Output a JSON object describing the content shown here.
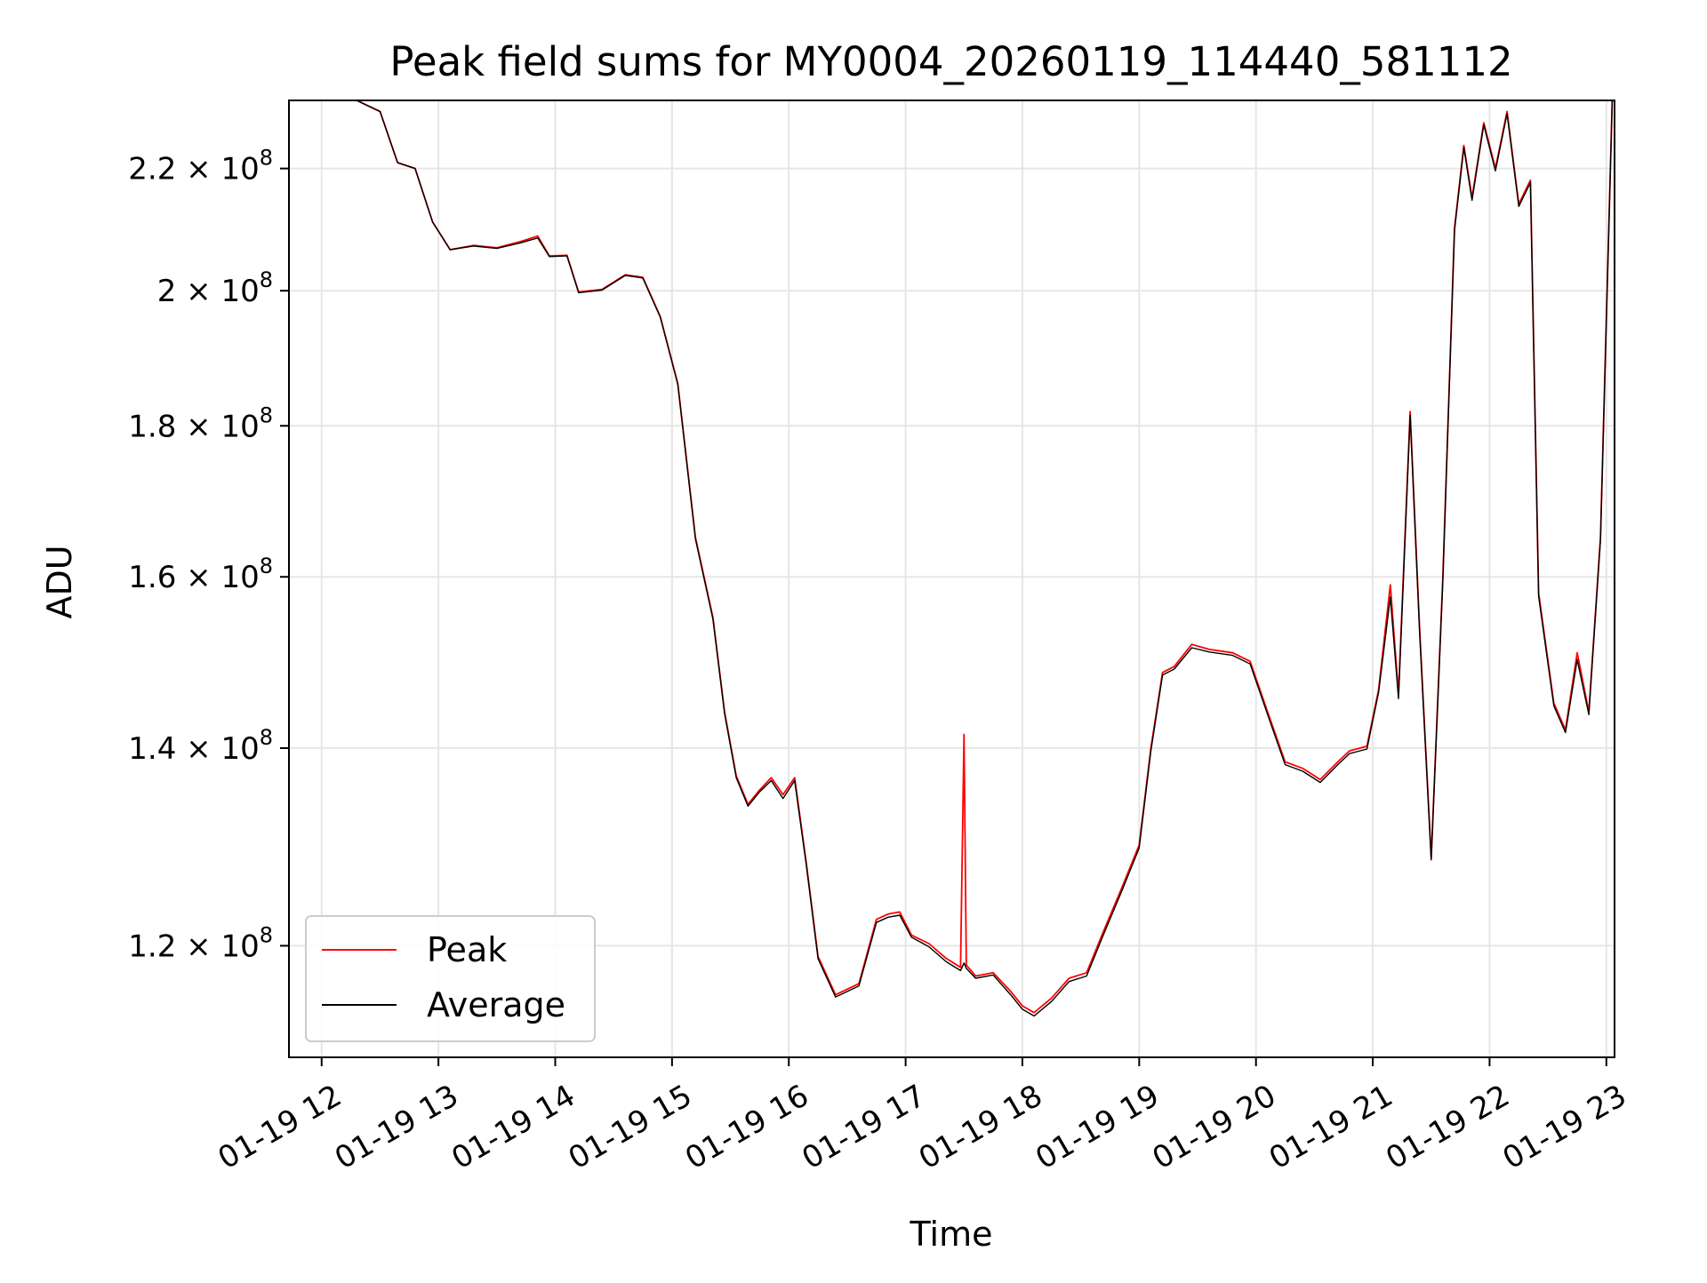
{
  "chart_data": {
    "type": "line",
    "title": "Peak field sums for MY0004_20260119_114440_581112",
    "xlabel": "Time",
    "ylabel": "ADU",
    "yscale": "log",
    "grid": true,
    "legend_position": "lower-left",
    "xlim_hours": [
      11.72,
      23.07
    ],
    "ylim": [
      110000000,
      232000000
    ],
    "x_ticks": [
      "01-19 12",
      "01-19 13",
      "01-19 14",
      "01-19 15",
      "01-19 16",
      "01-19 17",
      "01-19 18",
      "01-19 19",
      "01-19 20",
      "01-19 21",
      "01-19 22",
      "01-19 23"
    ],
    "y_ticks": [
      {
        "value": 120000000,
        "mantissa": "1.2",
        "base": "10",
        "exp": "8"
      },
      {
        "value": 140000000,
        "mantissa": "1.4",
        "base": "10",
        "exp": "8"
      },
      {
        "value": 160000000,
        "mantissa": "1.6",
        "base": "10",
        "exp": "8"
      },
      {
        "value": 180000000,
        "mantissa": "1.8",
        "base": "10",
        "exp": "8"
      },
      {
        "value": 200000000,
        "mantissa": "2",
        "base": "10",
        "exp": "8"
      },
      {
        "value": 220000000,
        "mantissa": "2.2",
        "base": "10",
        "exp": "8"
      }
    ],
    "series": [
      {
        "name": "Peak",
        "color": "#ff0000",
        "points": [
          [
            11.72,
            232000000
          ],
          [
            12.3,
            232000000
          ],
          [
            12.5,
            230000000
          ],
          [
            12.65,
            221000000
          ],
          [
            12.8,
            220000000
          ],
          [
            12.95,
            211000000
          ],
          [
            13.1,
            206500000
          ],
          [
            13.3,
            207200000
          ],
          [
            13.5,
            206800000
          ],
          [
            13.7,
            207800000
          ],
          [
            13.85,
            208700000
          ],
          [
            13.95,
            205500000
          ],
          [
            14.1,
            205600000
          ],
          [
            14.2,
            199800000
          ],
          [
            14.4,
            200200000
          ],
          [
            14.6,
            202500000
          ],
          [
            14.75,
            202100000
          ],
          [
            14.9,
            196000000
          ],
          [
            15.05,
            186000000
          ],
          [
            15.2,
            165000000
          ],
          [
            15.35,
            155000000
          ],
          [
            15.45,
            144000000
          ],
          [
            15.55,
            137000000
          ],
          [
            15.65,
            134000000
          ],
          [
            15.75,
            135500000
          ],
          [
            15.85,
            136800000
          ],
          [
            15.95,
            135000000
          ],
          [
            16.05,
            136800000
          ],
          [
            16.15,
            128000000
          ],
          [
            16.25,
            119000000
          ],
          [
            16.4,
            115500000
          ],
          [
            16.6,
            116500000
          ],
          [
            16.75,
            122500000
          ],
          [
            16.85,
            123000000
          ],
          [
            16.95,
            123200000
          ],
          [
            17.05,
            121000000
          ],
          [
            17.2,
            120200000
          ],
          [
            17.35,
            118800000
          ],
          [
            17.47,
            118000000
          ],
          [
            17.5,
            141500000
          ],
          [
            17.52,
            118200000
          ],
          [
            17.6,
            117200000
          ],
          [
            17.75,
            117500000
          ],
          [
            17.9,
            115800000
          ],
          [
            18.0,
            114500000
          ],
          [
            18.1,
            113900000
          ],
          [
            18.25,
            115200000
          ],
          [
            18.4,
            117000000
          ],
          [
            18.55,
            117500000
          ],
          [
            18.7,
            121500000
          ],
          [
            18.85,
            125500000
          ],
          [
            19.0,
            129800000
          ],
          [
            19.1,
            140000000
          ],
          [
            19.2,
            148500000
          ],
          [
            19.3,
            149200000
          ],
          [
            19.45,
            151800000
          ],
          [
            19.6,
            151200000
          ],
          [
            19.8,
            150800000
          ],
          [
            19.95,
            149800000
          ],
          [
            20.1,
            144000000
          ],
          [
            20.25,
            138500000
          ],
          [
            20.4,
            137800000
          ],
          [
            20.55,
            136600000
          ],
          [
            20.7,
            138500000
          ],
          [
            20.8,
            139700000
          ],
          [
            20.95,
            140200000
          ],
          [
            21.05,
            146500000
          ],
          [
            21.15,
            159000000
          ],
          [
            21.22,
            146000000
          ],
          [
            21.32,
            182000000
          ],
          [
            21.4,
            154000000
          ],
          [
            21.5,
            128500000
          ],
          [
            21.6,
            160000000
          ],
          [
            21.7,
            210000000
          ],
          [
            21.78,
            224000000
          ],
          [
            21.85,
            215000000
          ],
          [
            21.95,
            228000000
          ],
          [
            22.05,
            220000000
          ],
          [
            22.15,
            230000000
          ],
          [
            22.25,
            214000000
          ],
          [
            22.35,
            218000000
          ],
          [
            22.42,
            158000000
          ],
          [
            22.55,
            145000000
          ],
          [
            22.65,
            142000000
          ],
          [
            22.75,
            150800000
          ],
          [
            22.85,
            144000000
          ],
          [
            22.95,
            165000000
          ],
          [
            23.05,
            232000000
          ]
        ]
      },
      {
        "name": "Average",
        "color": "#000000",
        "points": [
          [
            11.72,
            232000000
          ],
          [
            12.3,
            232000000
          ],
          [
            12.5,
            230000000
          ],
          [
            12.65,
            221000000
          ],
          [
            12.8,
            220000000
          ],
          [
            12.95,
            211000000
          ],
          [
            13.1,
            206500000
          ],
          [
            13.3,
            207100000
          ],
          [
            13.5,
            206700000
          ],
          [
            13.7,
            207600000
          ],
          [
            13.85,
            208400000
          ],
          [
            13.95,
            205400000
          ],
          [
            14.1,
            205500000
          ],
          [
            14.2,
            199700000
          ],
          [
            14.4,
            200100000
          ],
          [
            14.6,
            202400000
          ],
          [
            14.75,
            202000000
          ],
          [
            14.9,
            195900000
          ],
          [
            15.05,
            185900000
          ],
          [
            15.2,
            164800000
          ],
          [
            15.35,
            154800000
          ],
          [
            15.45,
            143800000
          ],
          [
            15.55,
            136800000
          ],
          [
            15.65,
            133800000
          ],
          [
            15.75,
            135300000
          ],
          [
            15.85,
            136500000
          ],
          [
            15.95,
            134600000
          ],
          [
            16.05,
            136500000
          ],
          [
            16.15,
            127800000
          ],
          [
            16.25,
            118800000
          ],
          [
            16.4,
            115300000
          ],
          [
            16.6,
            116300000
          ],
          [
            16.75,
            122200000
          ],
          [
            16.85,
            122700000
          ],
          [
            16.95,
            122900000
          ],
          [
            17.05,
            120800000
          ],
          [
            17.2,
            119900000
          ],
          [
            17.35,
            118500000
          ],
          [
            17.47,
            117700000
          ],
          [
            17.5,
            118400000
          ],
          [
            17.52,
            117900000
          ],
          [
            17.6,
            117000000
          ],
          [
            17.75,
            117300000
          ],
          [
            17.9,
            115500000
          ],
          [
            18.0,
            114200000
          ],
          [
            18.1,
            113600000
          ],
          [
            18.25,
            114900000
          ],
          [
            18.4,
            116700000
          ],
          [
            18.55,
            117200000
          ],
          [
            18.7,
            121200000
          ],
          [
            18.85,
            125200000
          ],
          [
            19.0,
            129500000
          ],
          [
            19.1,
            139700000
          ],
          [
            19.2,
            148200000
          ],
          [
            19.3,
            148900000
          ],
          [
            19.45,
            151400000
          ],
          [
            19.6,
            150900000
          ],
          [
            19.8,
            150500000
          ],
          [
            19.95,
            149500000
          ],
          [
            20.1,
            143700000
          ],
          [
            20.25,
            138200000
          ],
          [
            20.4,
            137500000
          ],
          [
            20.55,
            136300000
          ],
          [
            20.7,
            138200000
          ],
          [
            20.8,
            139400000
          ],
          [
            20.95,
            139900000
          ],
          [
            21.05,
            146200000
          ],
          [
            21.15,
            157500000
          ],
          [
            21.22,
            145500000
          ],
          [
            21.32,
            181500000
          ],
          [
            21.4,
            153500000
          ],
          [
            21.5,
            128300000
          ],
          [
            21.6,
            159600000
          ],
          [
            21.7,
            209600000
          ],
          [
            21.78,
            223600000
          ],
          [
            21.85,
            214600000
          ],
          [
            21.95,
            227600000
          ],
          [
            22.05,
            219600000
          ],
          [
            22.15,
            229600000
          ],
          [
            22.25,
            213600000
          ],
          [
            22.35,
            217600000
          ],
          [
            22.42,
            157600000
          ],
          [
            22.55,
            144700000
          ],
          [
            22.65,
            141700000
          ],
          [
            22.75,
            150000000
          ],
          [
            22.85,
            143700000
          ],
          [
            22.95,
            164700000
          ],
          [
            23.05,
            232000000
          ]
        ]
      }
    ]
  }
}
